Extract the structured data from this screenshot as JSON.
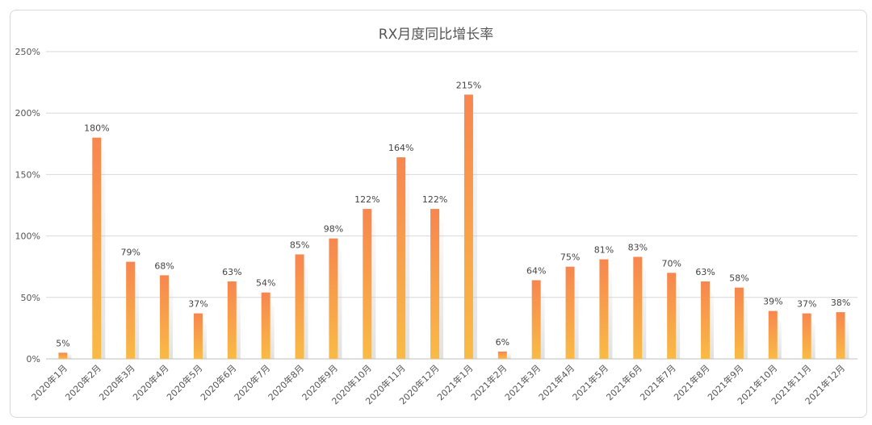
{
  "chart_data": {
    "type": "bar",
    "title": "RX月度同比增长率",
    "xlabel": "",
    "ylabel": "",
    "ylim": [
      0,
      250
    ],
    "yticks": [
      "0%",
      "50%",
      "100%",
      "150%",
      "200%",
      "250%"
    ],
    "grid": true,
    "legend": "none",
    "categories": [
      "2020年1月",
      "2020年2月",
      "2020年3月",
      "2020年4月",
      "2020年5月",
      "2020年6月",
      "2020年7月",
      "2020年8月",
      "2020年9月",
      "2020年10月",
      "2020年11月",
      "2020年12月",
      "2021年1月",
      "2021年2月",
      "2021年3月",
      "2021年4月",
      "2021年5月",
      "2021年6月",
      "2021年7月",
      "2021年8月",
      "2021年9月",
      "2021年10月",
      "2021年11月",
      "2021年12月"
    ],
    "values": [
      5,
      180,
      79,
      68,
      37,
      63,
      54,
      85,
      98,
      122,
      164,
      122,
      215,
      6,
      64,
      75,
      81,
      83,
      70,
      63,
      58,
      39,
      37,
      38
    ],
    "data_labels": [
      "5%",
      "180%",
      "79%",
      "68%",
      "37%",
      "63%",
      "54%",
      "85%",
      "98%",
      "122%",
      "164%",
      "122%",
      "215%",
      "6%",
      "64%",
      "75%",
      "81%",
      "83%",
      "70%",
      "63%",
      "58%",
      "39%",
      "37%",
      "38%"
    ],
    "colors": {
      "bar_top": "#f7864f",
      "bar_bottom": "#f9bb45",
      "shadow": "#bdbdbd",
      "grid": "#d9d9d9"
    }
  }
}
